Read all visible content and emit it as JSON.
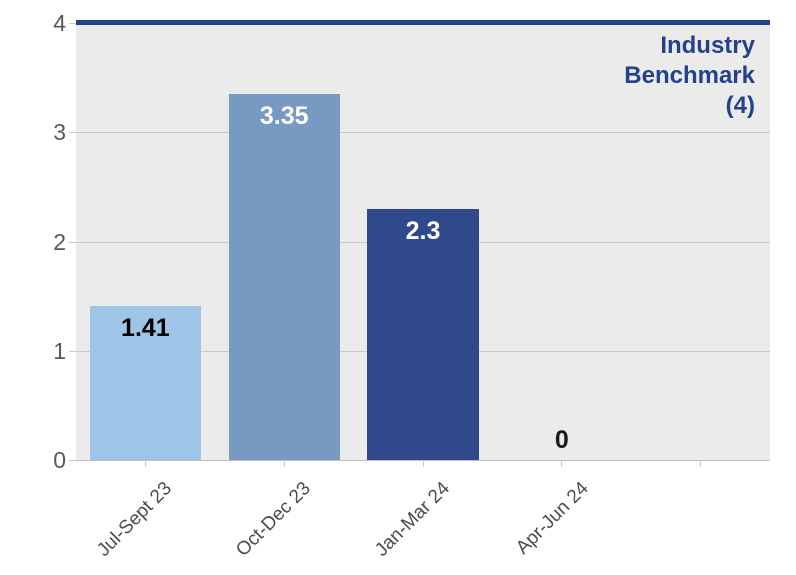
{
  "chart_data": {
    "type": "bar",
    "title": "",
    "categories": [
      "Jul-Sept 23",
      "Oct-Dec 23",
      "Jan-Mar 24",
      "Apr-Jun 24"
    ],
    "values": [
      1.41,
      3.35,
      2.3,
      0
    ],
    "value_labels": [
      "1.41",
      "3.35",
      "2.3",
      "0"
    ],
    "bar_colors": [
      "#9EC4E8",
      "#7899C2",
      "#30498C",
      "none"
    ],
    "value_label_colors": [
      "#000000",
      "#ffffff",
      "#ffffff",
      "#1a1a1a"
    ],
    "n_slots": 5,
    "ylim": [
      0,
      4
    ],
    "yticks": [
      0,
      1,
      2,
      3,
      4
    ],
    "grid": "horizontal",
    "legend": "none",
    "plot_bg_color": "#ebebeb",
    "gridline_color": "#c9c9c9",
    "ytick_label_color": "#595959",
    "xtick_label_color": "#4d4d4d",
    "benchmark": {
      "value": 4,
      "label": "Industry Benchmark (4)",
      "label_lines": [
        "Industry",
        "Benchmark",
        "(4)"
      ],
      "color": "#24418c"
    }
  }
}
